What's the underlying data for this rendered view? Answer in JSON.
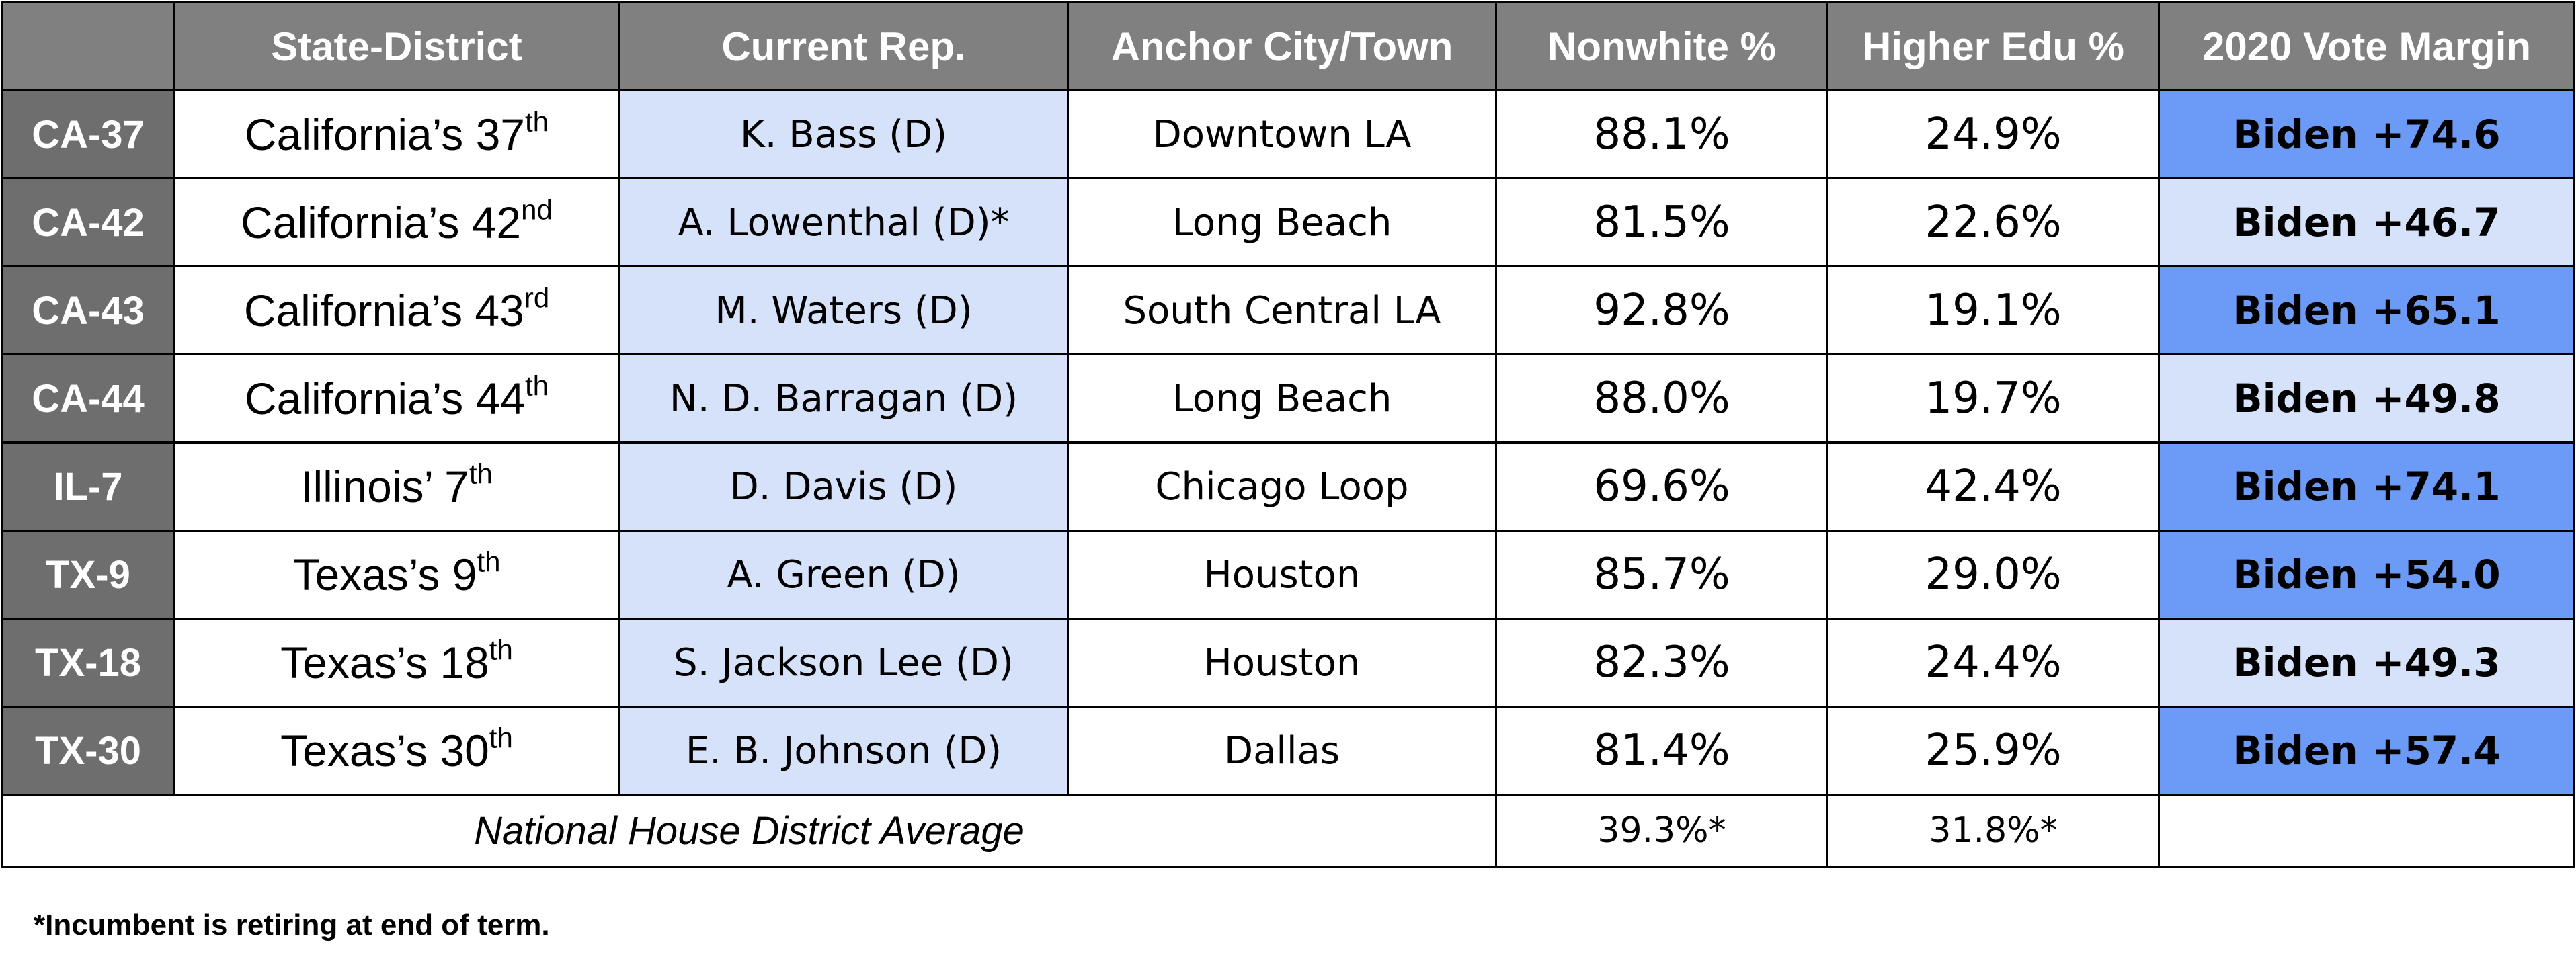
{
  "columns": {
    "code": "",
    "district": "State-District",
    "rep": "Current Rep.",
    "city": "Anchor City/Town",
    "nonwhite": "Nonwhite %",
    "higher_edu": "Higher Edu %",
    "margin": "2020 Vote Margin"
  },
  "rows": [
    {
      "code": "CA-37",
      "name": "California’s 37",
      "suffix": "th",
      "rep": "K. Bass (D)",
      "city": "Downtown LA",
      "nonwhite": "88.1%",
      "higher_edu": "24.9%",
      "margin": "Biden +74.6",
      "highlight": "strong"
    },
    {
      "code": "CA-42",
      "name": "California’s 42",
      "suffix": "nd",
      "rep": "A. Lowenthal (D)*",
      "city": "Long Beach",
      "nonwhite": "81.5%",
      "higher_edu": "22.6%",
      "margin": "Biden +46.7",
      "highlight": "light"
    },
    {
      "code": "CA-43",
      "name": "California’s 43",
      "suffix": "rd",
      "rep": "M. Waters (D)",
      "city": "South Central LA",
      "nonwhite": "92.8%",
      "higher_edu": "19.1%",
      "margin": "Biden +65.1",
      "highlight": "strong"
    },
    {
      "code": "CA-44",
      "name": "California’s 44",
      "suffix": "th",
      "rep": "N. D. Barragan (D)",
      "city": "Long Beach",
      "nonwhite": "88.0%",
      "higher_edu": "19.7%",
      "margin": "Biden +49.8",
      "highlight": "light"
    },
    {
      "code": "IL-7",
      "name": "Illinois’ 7",
      "suffix": "th",
      "rep": "D. Davis (D)",
      "city": "Chicago Loop",
      "nonwhite": "69.6%",
      "higher_edu": "42.4%",
      "margin": "Biden +74.1",
      "highlight": "strong"
    },
    {
      "code": "TX-9",
      "name": "Texas’s 9",
      "suffix": "th",
      "rep": "A. Green (D)",
      "city": "Houston",
      "nonwhite": "85.7%",
      "higher_edu": "29.0%",
      "margin": "Biden +54.0",
      "highlight": "strong"
    },
    {
      "code": "TX-18",
      "name": "Texas’s 18",
      "suffix": "th",
      "rep": "S. Jackson Lee (D)",
      "city": "Houston",
      "nonwhite": "82.3%",
      "higher_edu": "24.4%",
      "margin": "Biden +49.3",
      "highlight": "light"
    },
    {
      "code": "TX-30",
      "name": "Texas’s 30",
      "suffix": "th",
      "rep": "E. B. Johnson (D)",
      "city": "Dallas",
      "nonwhite": "81.4%",
      "higher_edu": "25.9%",
      "margin": "Biden +57.4",
      "highlight": "strong"
    }
  ],
  "average": {
    "label": "National House District Average",
    "nonwhite": "39.3%*",
    "higher_edu": "31.8%*"
  },
  "footnote": "*Incumbent is retiring at end of term.",
  "colors": {
    "header_bg": "#808080",
    "code_bg": "#6e6e6e",
    "rep_bg": "#d6e2fa",
    "margin_strong": "#6c9bf7",
    "margin_light": "#d6e2fa"
  }
}
